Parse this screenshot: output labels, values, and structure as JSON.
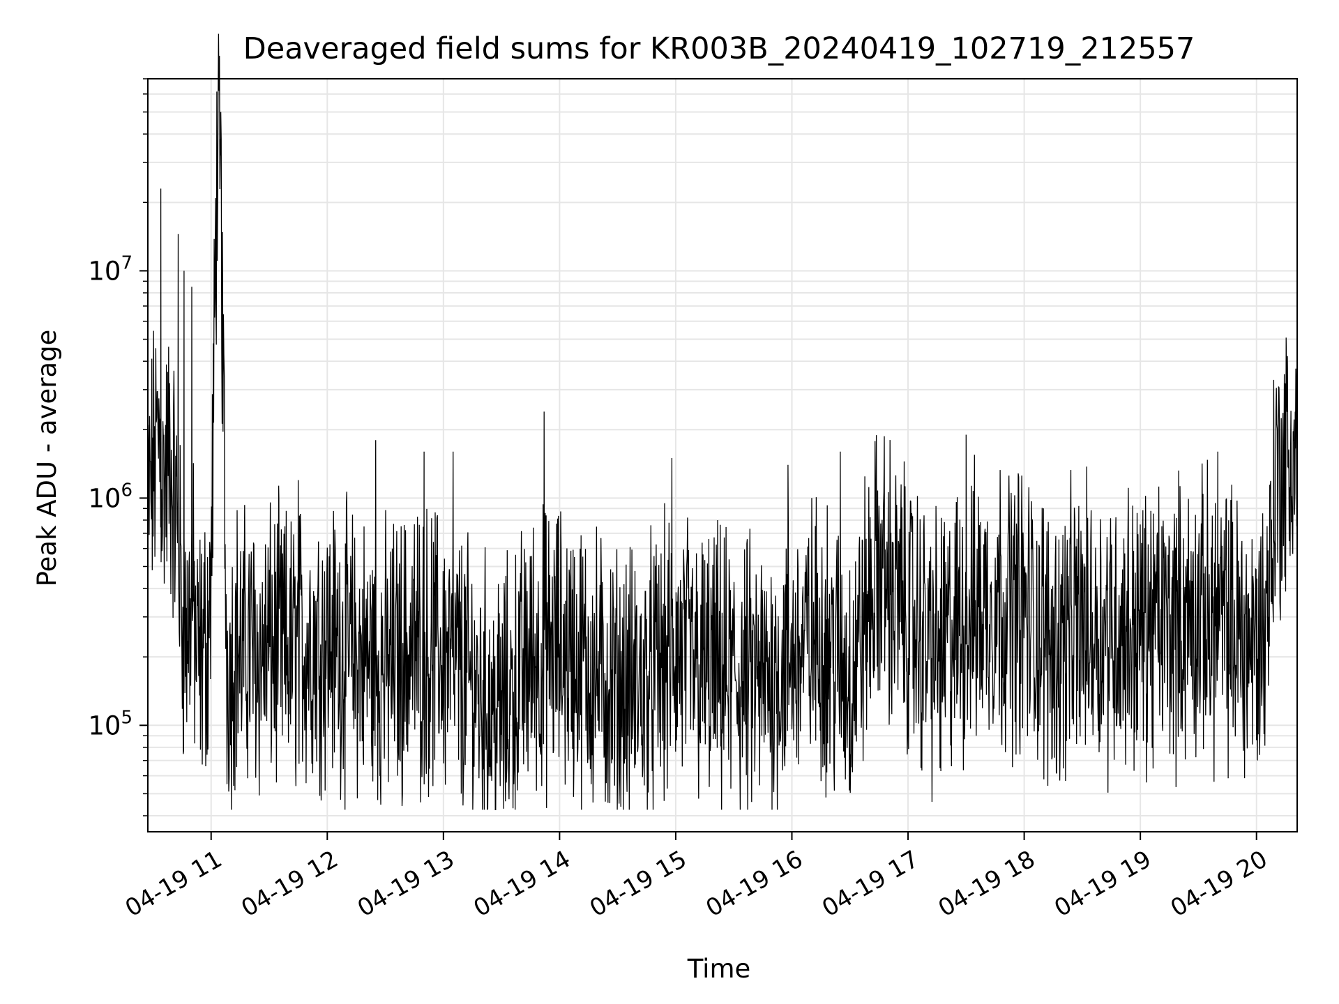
{
  "chart_data": {
    "type": "line",
    "title": "Deaveraged field sums for KR003B_20240419_102719_212557",
    "xlabel": "Time",
    "ylabel": "Peak ADU - average",
    "x_axis": "datetime",
    "xlim": [
      "2024-04-19 10:27:19",
      "2024-04-19 20:21:00"
    ],
    "y_scale": "log",
    "ylim": [
      34000,
      70000000
    ],
    "grid": true,
    "grid_color": "#e6e6e6",
    "line_color": "#000000",
    "x_tick_labels": [
      "04-19 11",
      "04-19 12",
      "04-19 13",
      "04-19 14",
      "04-19 15",
      "04-19 16",
      "04-19 17",
      "04-19 18",
      "04-19 19",
      "04-19 20"
    ],
    "x_tick_values": [
      "2024-04-19 11:00",
      "2024-04-19 12:00",
      "2024-04-19 13:00",
      "2024-04-19 14:00",
      "2024-04-19 15:00",
      "2024-04-19 16:00",
      "2024-04-19 17:00",
      "2024-04-19 18:00",
      "2024-04-19 19:00",
      "2024-04-19 20:00"
    ],
    "y_tick_labels": [
      {
        "base": "10",
        "exp": "5",
        "value": 100000
      },
      {
        "base": "10",
        "exp": "6",
        "value": 1000000
      },
      {
        "base": "10",
        "exp": "7",
        "value": 10000000
      }
    ],
    "series": [
      {
        "x": [
          "2024-04-19 10:27",
          "2024-04-19 10:30",
          "2024-04-19 10:33",
          "2024-04-19 10:35",
          "2024-04-19 10:38",
          "2024-04-19 10:40",
          "2024-04-19 10:43",
          "2024-04-19 10:45",
          "2024-04-19 10:48",
          "2024-04-19 10:50",
          "2024-04-19 10:53",
          "2024-04-19 10:55",
          "2024-04-19 10:58",
          "2024-04-19 11:00",
          "2024-04-19 11:03",
          "2024-04-19 11:05",
          "2024-04-19 11:08",
          "2024-04-19 11:10",
          "2024-04-19 11:13",
          "2024-04-19 11:16",
          "2024-04-19 11:20",
          "2024-04-19 11:25",
          "2024-04-19 11:30",
          "2024-04-19 11:40",
          "2024-04-19 11:50",
          "2024-04-19 12:00",
          "2024-04-19 12:15",
          "2024-04-19 12:30",
          "2024-04-19 12:45",
          "2024-04-19 13:00",
          "2024-04-19 13:15",
          "2024-04-19 13:30",
          "2024-04-19 13:45",
          "2024-04-19 14:00",
          "2024-04-19 14:15",
          "2024-04-19 14:30",
          "2024-04-19 14:45",
          "2024-04-19 15:00",
          "2024-04-19 15:15",
          "2024-04-19 15:30",
          "2024-04-19 15:45",
          "2024-04-19 16:00",
          "2024-04-19 16:15",
          "2024-04-19 16:30",
          "2024-04-19 16:45",
          "2024-04-19 17:00",
          "2024-04-19 17:15",
          "2024-04-19 17:30",
          "2024-04-19 17:45",
          "2024-04-19 18:00",
          "2024-04-19 18:15",
          "2024-04-19 18:30",
          "2024-04-19 18:45",
          "2024-04-19 19:00",
          "2024-04-19 19:15",
          "2024-04-19 19:30",
          "2024-04-19 19:45",
          "2024-04-19 20:00",
          "2024-04-19 20:05",
          "2024-04-19 20:10",
          "2024-04-19 20:15",
          "2024-04-19 20:21"
        ],
        "values": [
          800000,
          1300000,
          2000000,
          1100000,
          1500000,
          1200000,
          700000,
          300000,
          250000,
          400000,
          180000,
          200000,
          250000,
          400000,
          30000000,
          22000000,
          200000,
          180000,
          250000,
          200000,
          230000,
          200000,
          220000,
          210000,
          230000,
          240000,
          200000,
          180000,
          220000,
          210000,
          150000,
          110000,
          200000,
          220000,
          180000,
          140000,
          150000,
          210000,
          170000,
          160000,
          150000,
          200000,
          250000,
          160000,
          500000,
          300000,
          200000,
          300000,
          350000,
          320000,
          220000,
          280000,
          260000,
          270000,
          280000,
          300000,
          280000,
          220000,
          300000,
          1200000,
          1400000,
          1500000
        ]
      }
    ],
    "spikes": [
      {
        "x": "2024-04-19 10:34",
        "value": 23000000
      },
      {
        "x": "2024-04-19 10:43",
        "value": 14500000
      },
      {
        "x": "2024-04-19 10:46",
        "value": 10000000
      },
      {
        "x": "2024-04-19 10:50",
        "value": 8500000
      },
      {
        "x": "2024-04-19 11:05",
        "value": 50000000
      },
      {
        "x": "2024-04-19 11:35",
        "value": 1000000
      },
      {
        "x": "2024-04-19 11:45",
        "value": 1200000
      },
      {
        "x": "2024-04-19 12:25",
        "value": 1800000
      },
      {
        "x": "2024-04-19 12:50",
        "value": 1600000
      },
      {
        "x": "2024-04-19 13:05",
        "value": 1600000
      },
      {
        "x": "2024-04-19 13:52",
        "value": 2400000
      },
      {
        "x": "2024-04-19 14:58",
        "value": 1500000
      },
      {
        "x": "2024-04-19 15:58",
        "value": 1400000
      },
      {
        "x": "2024-04-19 16:25",
        "value": 1600000
      },
      {
        "x": "2024-04-19 17:30",
        "value": 1900000
      },
      {
        "x": "2024-04-19 19:40",
        "value": 1600000
      },
      {
        "x": "2024-04-19 20:20",
        "value": 2400000
      }
    ]
  }
}
